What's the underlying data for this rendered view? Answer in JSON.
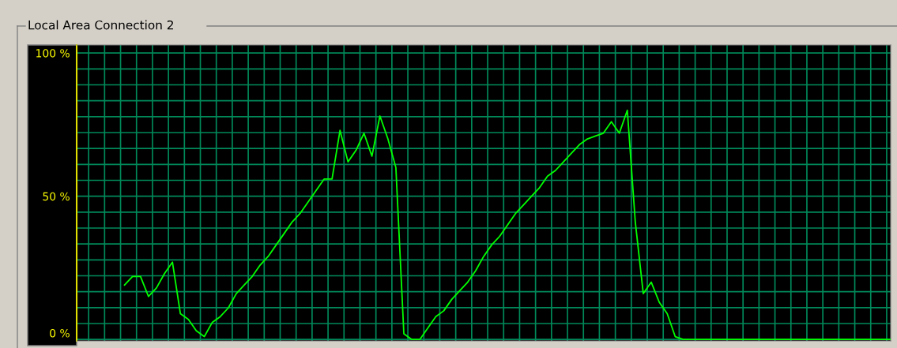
{
  "chart_data": {
    "type": "line",
    "title": "Local Area Connection 2",
    "categories": [
      null,
      null,
      null,
      null,
      null,
      null,
      null,
      null,
      null,
      null,
      null,
      null,
      null,
      null,
      null,
      null,
      null,
      null,
      null,
      null,
      null,
      null,
      null,
      null,
      null,
      null,
      null,
      null,
      null,
      null,
      null,
      null,
      null,
      null,
      null,
      null,
      null,
      null,
      null,
      null,
      null,
      null,
      null,
      null,
      null,
      null,
      null,
      null,
      null,
      null,
      null,
      null,
      null,
      null,
      null,
      null,
      null,
      null,
      null,
      null,
      null,
      null,
      null,
      null,
      null,
      null,
      null,
      null,
      null,
      null,
      null,
      null,
      null,
      null,
      null,
      null,
      null,
      null,
      null,
      null,
      null,
      null,
      null,
      null,
      null,
      null,
      null,
      null,
      null,
      null,
      null,
      null,
      null,
      null,
      null,
      null,
      null,
      null,
      null,
      null,
      null,
      null,
      null
    ],
    "series": [
      {
        "color": "#00ff00",
        "values": [
          null,
          null,
          null,
          null,
          null,
          null,
          19,
          22,
          22,
          15,
          18,
          23,
          27,
          9,
          7,
          3,
          1,
          6,
          8,
          11,
          16,
          19,
          22,
          26,
          29,
          33,
          37,
          41,
          44,
          48,
          52,
          56,
          56,
          73,
          62,
          66,
          72,
          64,
          78,
          70,
          60,
          2,
          0,
          0,
          4,
          8,
          10,
          14,
          17,
          20,
          24,
          29,
          33,
          36,
          40,
          44,
          47,
          50,
          53,
          57,
          59,
          62,
          65,
          68,
          70,
          71,
          72,
          76,
          72,
          80,
          41,
          16,
          20,
          13,
          9,
          1,
          0,
          0,
          0,
          0,
          0,
          0,
          0,
          0,
          0,
          0,
          0,
          0,
          0,
          0,
          0,
          0,
          0,
          0,
          0,
          0,
          0,
          0,
          0,
          0,
          0,
          0,
          0
        ]
      }
    ],
    "ylim": [
      -0.5,
      102.8
    ],
    "yticks": [
      {
        "value": 0,
        "label": "0 %"
      },
      {
        "value": 5.556,
        "label": null
      },
      {
        "value": 11.111,
        "label": null
      },
      {
        "value": 16.667,
        "label": null
      },
      {
        "value": 22.222,
        "label": null
      },
      {
        "value": 27.778,
        "label": null
      },
      {
        "value": 33.333,
        "label": null
      },
      {
        "value": 38.889,
        "label": null
      },
      {
        "value": 44.444,
        "label": null
      },
      {
        "value": 50,
        "label": "50 %"
      },
      {
        "value": 55.556,
        "label": null
      },
      {
        "value": 61.111,
        "label": null
      },
      {
        "value": 66.667,
        "label": null
      },
      {
        "value": 72.222,
        "label": null
      },
      {
        "value": 77.778,
        "label": null
      },
      {
        "value": 83.333,
        "label": null
      },
      {
        "value": 88.889,
        "label": null
      },
      {
        "value": 94.444,
        "label": null
      },
      {
        "value": 100,
        "label": "100 %"
      }
    ],
    "grid": true,
    "tick_labels": "y",
    "marker": "none",
    "line_style": "solid"
  }
}
